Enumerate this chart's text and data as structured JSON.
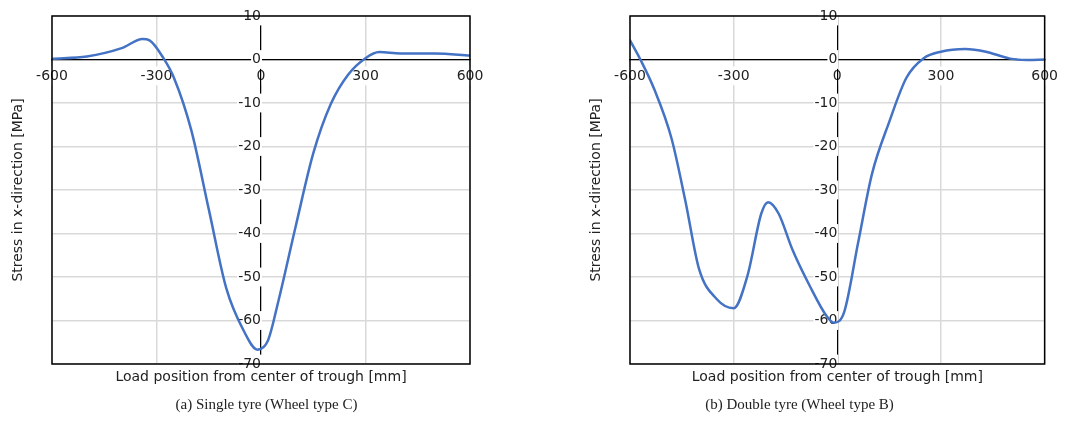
{
  "chart_data": [
    {
      "type": "line",
      "xlabel": "Load position from center of trough [mm]",
      "ylabel": "Stress in x-direction [MPa]",
      "annotations": [
        "(a)  Single tyre (Wheel type C)"
      ],
      "xlim": [
        -600,
        600
      ],
      "xticks": [
        -600,
        -300,
        0,
        300,
        600
      ],
      "ylim": [
        -70,
        10
      ],
      "yticks": [
        -70,
        -60,
        -50,
        -40,
        -30,
        -20,
        -10,
        0,
        10
      ],
      "grid": true,
      "legend": false,
      "marker": "none",
      "line_style": "solid",
      "series": [
        {
          "color": "#4472c4",
          "x": [
            -600,
            -500,
            -400,
            -340,
            -320,
            -280,
            -250,
            -200,
            -150,
            -100,
            -50,
            -10,
            20,
            50,
            100,
            150,
            200,
            250,
            300,
            340,
            400,
            500,
            600
          ],
          "values": [
            0.2,
            0.7,
            2.6,
            4.7,
            4.4,
            0.3,
            -4.2,
            -16.3,
            -34.4,
            -52.5,
            -62.3,
            -66.7,
            -64.6,
            -55.5,
            -38.2,
            -21.6,
            -10.3,
            -3.5,
            0.3,
            1.7,
            1.4,
            1.4,
            0.9
          ]
        }
      ]
    },
    {
      "type": "line",
      "xlabel": "Load position from center of trough [mm]",
      "ylabel": "Stress in x-direction [MPa]",
      "annotations": [
        "(b)  Double tyre (Wheel type B)"
      ],
      "xlim": [
        -600,
        600
      ],
      "xticks": [
        -600,
        -300,
        0,
        300,
        600
      ],
      "ylim": [
        -70,
        10
      ],
      "yticks": [
        -70,
        -60,
        -50,
        -40,
        -30,
        -20,
        -10,
        0,
        10
      ],
      "grid": true,
      "legend": false,
      "marker": "none",
      "line_style": "solid",
      "series": [
        {
          "color": "#4472c4",
          "x": [
            -600,
            -570,
            -530,
            -480,
            -440,
            -400,
            -350,
            -300,
            -260,
            -220,
            -200,
            -170,
            -130,
            -80,
            -30,
            -10,
            20,
            60,
            100,
            150,
            200,
            250,
            300,
            370,
            430,
            500,
            550,
            600
          ],
          "values": [
            4.4,
            0,
            -6.8,
            -18.1,
            -32.4,
            -48.2,
            -55,
            -57.2,
            -49.7,
            -35.4,
            -32.8,
            -35.4,
            -43.7,
            -52,
            -59.1,
            -60.5,
            -58,
            -42.2,
            -26.4,
            -14.4,
            -4.2,
            0.3,
            1.8,
            2.4,
            1.8,
            0.2,
            -0.1,
            0
          ]
        }
      ]
    }
  ]
}
